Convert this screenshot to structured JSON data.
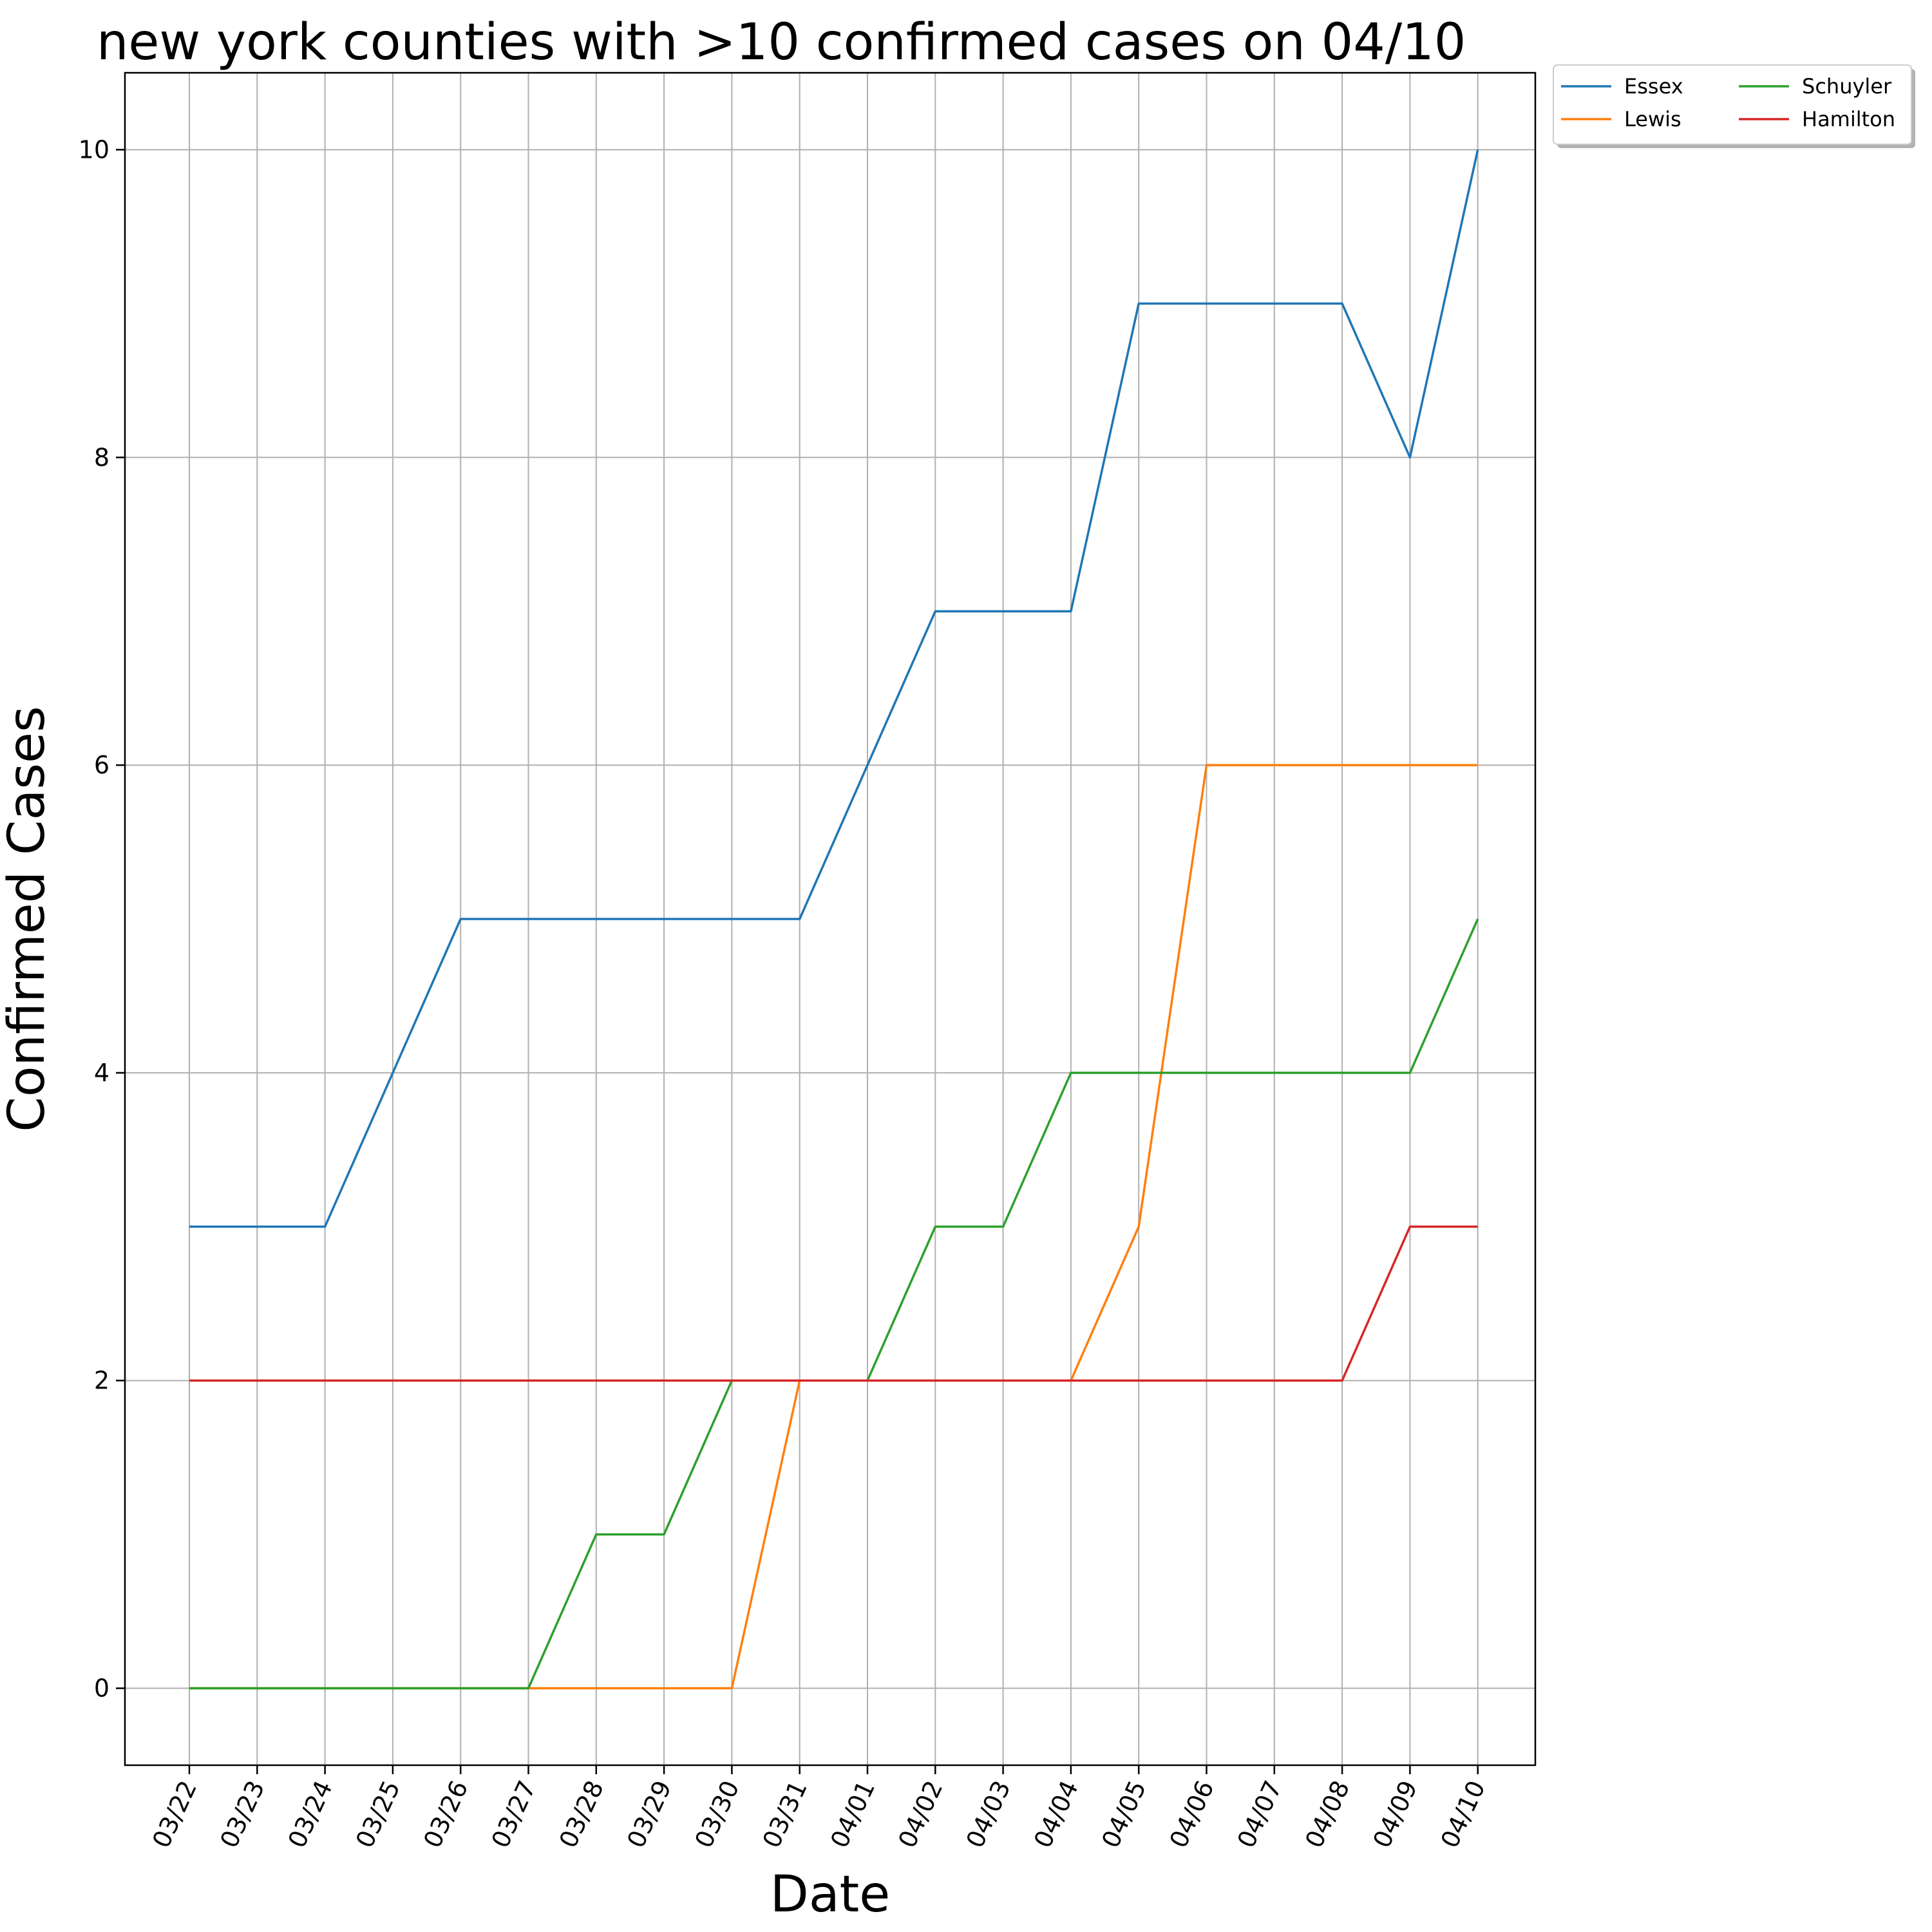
{
  "chart_data": {
    "type": "line",
    "title": "new york counties with >10 confirmed cases on 04/10",
    "xlabel": "Date",
    "ylabel": "Confirmed Cases",
    "categories": [
      "03/22",
      "03/23",
      "03/24",
      "03/25",
      "03/26",
      "03/27",
      "03/28",
      "03/29",
      "03/30",
      "03/31",
      "04/01",
      "04/02",
      "04/03",
      "04/04",
      "04/05",
      "04/06",
      "04/07",
      "04/08",
      "04/09",
      "04/10"
    ],
    "yticks": [
      "0",
      "2",
      "4",
      "6",
      "8",
      "10"
    ],
    "ylim": [
      -0.5,
      10.5
    ],
    "grid": true,
    "legend_position": "outside top-right",
    "series": [
      {
        "name": "Essex",
        "color": "#1f77b4",
        "values": [
          3,
          3,
          3,
          4,
          5,
          5,
          5,
          5,
          5,
          5,
          6,
          7,
          7,
          7,
          9,
          9,
          9,
          9,
          8,
          10
        ]
      },
      {
        "name": "Lewis",
        "color": "#ff7f0e",
        "values": [
          0,
          0,
          0,
          0,
          0,
          0,
          0,
          0,
          0,
          2,
          2,
          2,
          2,
          2,
          3,
          6,
          6,
          6,
          6,
          6
        ]
      },
      {
        "name": "Schuyler",
        "color": "#2ca02c",
        "values": [
          0,
          0,
          0,
          0,
          0,
          0,
          1,
          1,
          2,
          2,
          2,
          3,
          3,
          4,
          4,
          4,
          4,
          4,
          4,
          5
        ]
      },
      {
        "name": "Hamilton",
        "color": "#d62728",
        "values": [
          2,
          2,
          2,
          2,
          2,
          2,
          2,
          2,
          2,
          2,
          2,
          2,
          2,
          2,
          2,
          2,
          2,
          2,
          3,
          3
        ]
      }
    ]
  }
}
